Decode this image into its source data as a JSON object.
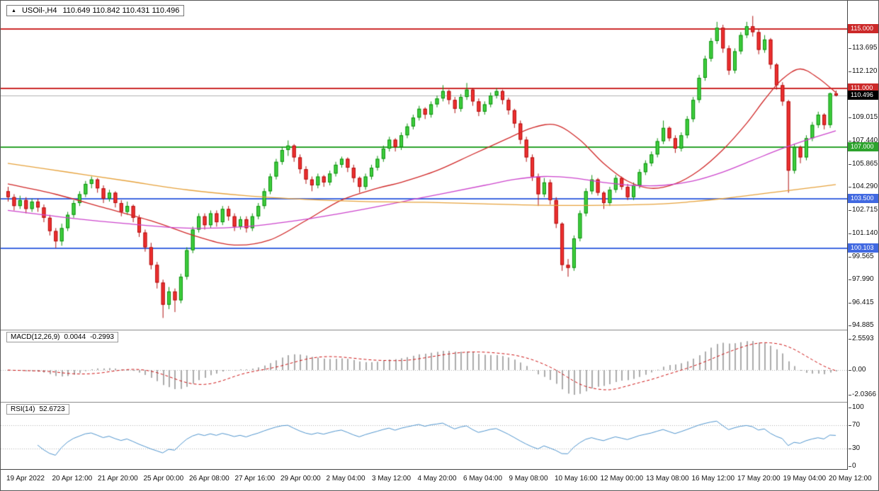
{
  "header": {
    "symbol": "USOil-,H4",
    "ohlc": "110.649 110.842 110.431 110.496"
  },
  "panels": {
    "macd": {
      "label": "MACD(12,26,9)",
      "value_main": "0.0044",
      "value_signal": "-0.2993",
      "axis": [
        {
          "text": "2.5593",
          "value": 2.5593
        },
        {
          "text": "0.00",
          "value": 0
        },
        {
          "text": "-2.0366",
          "value": -2.0366
        }
      ]
    },
    "rsi": {
      "label": "RSI(14)",
      "value": "52.6723",
      "axis": [
        {
          "text": "100",
          "value": 100
        },
        {
          "text": "70",
          "value": 70
        },
        {
          "text": "30",
          "value": 30
        },
        {
          "text": "0",
          "value": 0
        }
      ],
      "levels": [
        70,
        30
      ]
    }
  },
  "colors": {
    "up_fill": "#3fd03f",
    "up_stroke": "#0e8f0e",
    "down_fill": "#f03030",
    "down_stroke": "#b01010",
    "current_line": "#b0b0b0",
    "current_box": "#000000",
    "ma_fast": "#d02828",
    "ma_mid": "#cc44cc",
    "ma_slow": "#e6a23c",
    "macd_bar": "#ababab",
    "macd_signal": "#cc1111",
    "rsi_line": "#4f94cd",
    "grid_dotted": "#b0b0b0"
  },
  "chart_data": {
    "type": "candlestick",
    "title": "USOil-,H4",
    "timeframe": "H4",
    "price_range": {
      "max": 116.55,
      "min": 94.7
    },
    "price_axis_labels": [
      {
        "text": "113.695",
        "value": 113.695
      },
      {
        "text": "112.120",
        "value": 112.12
      },
      {
        "text": "109.015",
        "value": 109.015
      },
      {
        "text": "107.440",
        "value": 107.44
      },
      {
        "text": "105.865",
        "value": 105.865
      },
      {
        "text": "104.290",
        "value": 104.29
      },
      {
        "text": "102.715",
        "value": 102.715
      },
      {
        "text": "101.140",
        "value": 101.14
      },
      {
        "text": "99.565",
        "value": 99.565
      },
      {
        "text": "97.990",
        "value": 97.99
      },
      {
        "text": "96.415",
        "value": 96.415
      },
      {
        "text": "94.885",
        "value": 94.885
      }
    ],
    "level_lines": [
      {
        "price": 115.0,
        "label": "115.000",
        "color": "#cc2929"
      },
      {
        "price": 111.0,
        "label": "111.000",
        "color": "#cc2929"
      },
      {
        "price": 107.0,
        "label": "107.000",
        "color": "#2da32d"
      },
      {
        "price": 103.5,
        "label": "103.500",
        "color": "#4169e1"
      },
      {
        "price": 100.103,
        "label": "100.103",
        "color": "#4169e1"
      }
    ],
    "current_price": {
      "value": 110.496,
      "label": "110.496"
    },
    "time_labels": [
      "19 Apr 2022",
      "20 Apr 12:00",
      "21 Apr 20:00",
      "25 Apr 00:00",
      "26 Apr 08:00",
      "27 Apr 16:00",
      "29 Apr 00:00",
      "2 May 04:00",
      "3 May 12:00",
      "4 May 20:00",
      "6 May 04:00",
      "9 May 08:00",
      "10 May 16:00",
      "12 May 00:00",
      "13 May 08:00",
      "16 May 12:00",
      "17 May 20:00",
      "19 May 04:00",
      "20 May 12:00"
    ],
    "candles": [
      [
        104,
        104.3,
        103.3,
        103.6
      ],
      [
        103.6,
        103.8,
        102.7,
        103
      ],
      [
        103,
        103.7,
        102.8,
        103.4
      ],
      [
        103.4,
        103.6,
        102.5,
        102.8
      ],
      [
        102.8,
        103.5,
        102.6,
        103.3
      ],
      [
        103.3,
        103.5,
        102.6,
        102.9
      ],
      [
        102.9,
        103.1,
        101.9,
        102.2
      ],
      [
        102.2,
        102.4,
        101,
        101.3
      ],
      [
        101.3,
        101.5,
        100.15,
        100.6
      ],
      [
        100.6,
        101.8,
        100.3,
        101.5
      ],
      [
        101.5,
        102.6,
        101.3,
        102.4
      ],
      [
        102.4,
        103.4,
        102.2,
        103.2
      ],
      [
        103.2,
        104,
        103,
        103.8
      ],
      [
        103.8,
        104.7,
        103.6,
        104.5
      ],
      [
        104.5,
        105,
        104.2,
        104.8
      ],
      [
        104.8,
        104.9,
        103.9,
        104.2
      ],
      [
        104.2,
        104.4,
        103.2,
        103.5
      ],
      [
        103.5,
        104.1,
        103.3,
        103.9
      ],
      [
        103.9,
        104,
        102.9,
        103.2
      ],
      [
        103.2,
        103.4,
        102.3,
        102.6
      ],
      [
        102.6,
        103.3,
        102.4,
        103
      ],
      [
        103,
        103.1,
        101.9,
        102.2
      ],
      [
        102.2,
        102.4,
        100.9,
        101.2
      ],
      [
        101.2,
        101.4,
        99.9,
        100.2
      ],
      [
        100.2,
        100.5,
        98.7,
        99
      ],
      [
        99,
        99.2,
        97.4,
        97.8
      ],
      [
        97.8,
        98,
        95.4,
        96.3
      ],
      [
        96.3,
        97.5,
        96,
        97.2
      ],
      [
        97.2,
        97.4,
        95.8,
        96.6
      ],
      [
        96.6,
        98.4,
        96.4,
        98.2
      ],
      [
        98.2,
        100.2,
        98,
        100
      ],
      [
        100,
        101.6,
        99.8,
        101.4
      ],
      [
        101.4,
        102.5,
        101.2,
        102.3
      ],
      [
        102.3,
        102.5,
        101.4,
        101.7
      ],
      [
        101.7,
        102.7,
        101.5,
        102.5
      ],
      [
        102.5,
        102.7,
        101.6,
        101.9
      ],
      [
        101.9,
        103,
        101.7,
        102.8
      ],
      [
        102.8,
        103,
        102,
        102.3
      ],
      [
        102.3,
        102.5,
        101.3,
        101.6
      ],
      [
        101.6,
        102.3,
        101.4,
        102.1
      ],
      [
        102.1,
        102.3,
        101.2,
        101.5
      ],
      [
        101.5,
        102.5,
        101.3,
        102.3
      ],
      [
        102.3,
        103.2,
        102.1,
        103
      ],
      [
        103,
        104.2,
        102.8,
        104
      ],
      [
        104,
        105.2,
        103.8,
        105
      ],
      [
        105,
        106.2,
        104.8,
        106
      ],
      [
        106,
        107,
        105.8,
        106.8
      ],
      [
        106.8,
        107.45,
        106.4,
        107.1
      ],
      [
        107.1,
        107.2,
        106,
        106.3
      ],
      [
        106.3,
        106.5,
        105.2,
        105.5
      ],
      [
        105.5,
        105.7,
        104.5,
        104.8
      ],
      [
        104.8,
        105,
        104,
        104.4
      ],
      [
        104.4,
        105.2,
        104.2,
        105
      ],
      [
        105,
        105.1,
        104.3,
        104.6
      ],
      [
        104.6,
        105.4,
        104.4,
        105.2
      ],
      [
        105.2,
        106,
        105,
        105.8
      ],
      [
        105.8,
        106.35,
        105.6,
        106.2
      ],
      [
        106.2,
        106.3,
        105.3,
        105.6
      ],
      [
        105.6,
        105.8,
        104.6,
        104.9
      ],
      [
        104.9,
        105,
        103.9,
        104.3
      ],
      [
        104.3,
        105.2,
        104.1,
        105
      ],
      [
        105,
        105.8,
        104.8,
        105.6
      ],
      [
        105.6,
        106.4,
        105.4,
        106.2
      ],
      [
        106.2,
        107.1,
        106,
        106.9
      ],
      [
        106.9,
        107.7,
        106.7,
        107.5
      ],
      [
        107.5,
        107.6,
        106.7,
        107
      ],
      [
        107,
        108,
        106.8,
        107.8
      ],
      [
        107.8,
        108.6,
        107.6,
        108.4
      ],
      [
        108.4,
        109.2,
        108.2,
        109
      ],
      [
        109,
        109.8,
        108.8,
        109.6
      ],
      [
        109.6,
        109.7,
        108.9,
        109.2
      ],
      [
        109.2,
        110.1,
        109,
        109.9
      ],
      [
        109.9,
        110.5,
        109.7,
        110.3
      ],
      [
        110.3,
        111.2,
        110.1,
        110.8
      ],
      [
        110.8,
        110.9,
        109.9,
        110.2
      ],
      [
        110.2,
        110.4,
        109.3,
        109.6
      ],
      [
        109.6,
        110.6,
        109.4,
        110.4
      ],
      [
        110.4,
        111.35,
        110.2,
        110.9
      ],
      [
        110.9,
        111,
        109.8,
        110.1
      ],
      [
        110.1,
        110.3,
        109.1,
        109.4
      ],
      [
        109.4,
        110.1,
        109.2,
        109.9
      ],
      [
        109.9,
        110.7,
        109.7,
        110.5
      ],
      [
        110.5,
        111,
        110.3,
        110.8
      ],
      [
        110.8,
        110.9,
        109.9,
        110.2
      ],
      [
        110.2,
        110.35,
        109.2,
        109.5
      ],
      [
        109.5,
        109.6,
        108.3,
        108.6
      ],
      [
        108.6,
        108.8,
        107.2,
        107.5
      ],
      [
        107.5,
        107.7,
        106,
        106.3
      ],
      [
        106.3,
        106.5,
        104.7,
        105
      ],
      [
        105,
        105.2,
        103,
        103.8
      ],
      [
        103.8,
        104.9,
        103.6,
        104.6
      ],
      [
        104.6,
        104.8,
        103.1,
        103.4
      ],
      [
        103.4,
        103.6,
        101.5,
        101.8
      ],
      [
        101.8,
        101.9,
        98.6,
        99
      ],
      [
        99,
        99.4,
        98.2,
        98.8
      ],
      [
        98.8,
        101,
        98.6,
        100.8
      ],
      [
        100.8,
        102.7,
        100.6,
        102.5
      ],
      [
        102.5,
        104.2,
        102.3,
        104
      ],
      [
        104,
        105.1,
        103.8,
        104.8
      ],
      [
        104.8,
        104.9,
        103.7,
        103.9
      ],
      [
        103.9,
        104,
        102.8,
        103.2
      ],
      [
        103.2,
        104.3,
        103,
        104.1
      ],
      [
        104.1,
        105.1,
        103.9,
        104.9
      ],
      [
        104.9,
        105,
        104.1,
        104.3
      ],
      [
        104.3,
        104.5,
        103.4,
        103.6
      ],
      [
        103.6,
        104.6,
        103.4,
        104.4
      ],
      [
        104.4,
        105.5,
        104.2,
        105.3
      ],
      [
        105.3,
        106.1,
        105.1,
        105.9
      ],
      [
        105.9,
        106.7,
        105.7,
        106.5
      ],
      [
        106.5,
        107.6,
        106.3,
        107.4
      ],
      [
        107.4,
        108.8,
        107.2,
        108.3
      ],
      [
        108.3,
        108.4,
        107.4,
        107.6
      ],
      [
        107.6,
        107.8,
        106.6,
        106.9
      ],
      [
        106.9,
        108,
        106.7,
        107.8
      ],
      [
        107.8,
        109.1,
        107.6,
        108.9
      ],
      [
        108.9,
        110.4,
        108.7,
        110.2
      ],
      [
        110.2,
        111.9,
        110,
        111.7
      ],
      [
        111.7,
        113.2,
        111.5,
        113
      ],
      [
        113,
        114.4,
        112.8,
        114.2
      ],
      [
        114.2,
        115.5,
        114,
        115.1
      ],
      [
        115.1,
        115.3,
        113.4,
        113.7
      ],
      [
        113.7,
        113.9,
        111.9,
        112.2
      ],
      [
        112.2,
        113.7,
        112,
        113.5
      ],
      [
        113.5,
        114.8,
        113.3,
        114.6
      ],
      [
        114.6,
        115.5,
        114.4,
        115.2
      ],
      [
        115.2,
        115.9,
        114.5,
        114.8
      ],
      [
        114.8,
        115,
        113.3,
        113.6
      ],
      [
        113.6,
        114.6,
        113.4,
        114.3
      ],
      [
        114.3,
        114.4,
        112.3,
        112.6
      ],
      [
        112.6,
        112.7,
        110.9,
        111.2
      ],
      [
        111.2,
        111.4,
        109.8,
        110.1
      ],
      [
        110.1,
        110.2,
        103.9,
        105.4
      ],
      [
        105.4,
        107.2,
        105.2,
        107
      ],
      [
        107,
        107.1,
        105.9,
        106.3
      ],
      [
        106.3,
        107.8,
        106.1,
        107.6
      ],
      [
        107.6,
        108.7,
        107.4,
        108.5
      ],
      [
        108.5,
        109.4,
        108.3,
        109.2
      ],
      [
        109.2,
        109.3,
        108.2,
        108.5
      ],
      [
        108.5,
        110.7,
        108.3,
        110.649
      ],
      [
        110.649,
        110.842,
        110.431,
        110.496
      ]
    ],
    "moving_averages": [
      {
        "name": "ma-fast-red",
        "color": "#d02828",
        "points": [
          [
            0,
            104.5
          ],
          [
            8,
            103.8
          ],
          [
            16,
            102.9
          ],
          [
            24,
            102
          ],
          [
            32,
            100.9
          ],
          [
            38,
            100.35
          ],
          [
            44,
            100.7
          ],
          [
            50,
            102
          ],
          [
            56,
            103.4
          ],
          [
            62,
            104.2
          ],
          [
            66,
            104.6
          ],
          [
            72,
            105.4
          ],
          [
            78,
            106.5
          ],
          [
            84,
            107.6
          ],
          [
            88,
            108.3
          ],
          [
            92,
            108.5
          ],
          [
            96,
            107.5
          ],
          [
            100,
            105.9
          ],
          [
            104,
            104.7
          ],
          [
            108,
            104.2
          ],
          [
            112,
            104.5
          ],
          [
            116,
            105.4
          ],
          [
            120,
            106.8
          ],
          [
            124,
            108.6
          ],
          [
            127,
            110.2
          ],
          [
            130,
            111.6
          ],
          [
            133,
            112.3
          ],
          [
            136,
            111.7
          ],
          [
            139,
            110.7
          ]
        ]
      },
      {
        "name": "ma-mid-magenta",
        "color": "#cc44cc",
        "points": [
          [
            0,
            102.7
          ],
          [
            10,
            102.2
          ],
          [
            20,
            101.8
          ],
          [
            30,
            101.5
          ],
          [
            40,
            101.6
          ],
          [
            50,
            102.1
          ],
          [
            60,
            102.8
          ],
          [
            70,
            103.6
          ],
          [
            80,
            104.4
          ],
          [
            85,
            104.8
          ],
          [
            90,
            105
          ],
          [
            95,
            104.9
          ],
          [
            100,
            104.6
          ],
          [
            105,
            104.4
          ],
          [
            110,
            104.4
          ],
          [
            115,
            104.7
          ],
          [
            120,
            105.3
          ],
          [
            125,
            106.1
          ],
          [
            130,
            106.9
          ],
          [
            135,
            107.6
          ],
          [
            139,
            108.1
          ]
        ]
      },
      {
        "name": "ma-slow-orange",
        "color": "#e6a23c",
        "points": [
          [
            0,
            105.9
          ],
          [
            10,
            105.3
          ],
          [
            20,
            104.7
          ],
          [
            30,
            104.1
          ],
          [
            40,
            103.7
          ],
          [
            50,
            103.45
          ],
          [
            60,
            103.3
          ],
          [
            70,
            103.25
          ],
          [
            80,
            103.15
          ],
          [
            90,
            103.05
          ],
          [
            100,
            103.05
          ],
          [
            110,
            103.15
          ],
          [
            115,
            103.3
          ],
          [
            120,
            103.5
          ],
          [
            125,
            103.75
          ],
          [
            130,
            104
          ],
          [
            135,
            104.25
          ],
          [
            139,
            104.45
          ]
        ]
      }
    ]
  }
}
